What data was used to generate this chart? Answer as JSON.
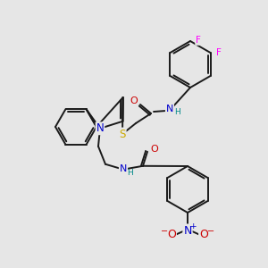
{
  "bg_color": "#e6e6e6",
  "bond_color": "#1a1a1a",
  "bond_lw": 1.4,
  "atom_colors": {
    "N": "#0000cc",
    "O": "#cc0000",
    "S": "#ccaa00",
    "F": "#ff00ff",
    "NH": "#008888",
    "N_nitro": "#0000cc",
    "O_nitro": "#cc0000"
  },
  "figsize": [
    3.0,
    3.0
  ],
  "dpi": 100
}
